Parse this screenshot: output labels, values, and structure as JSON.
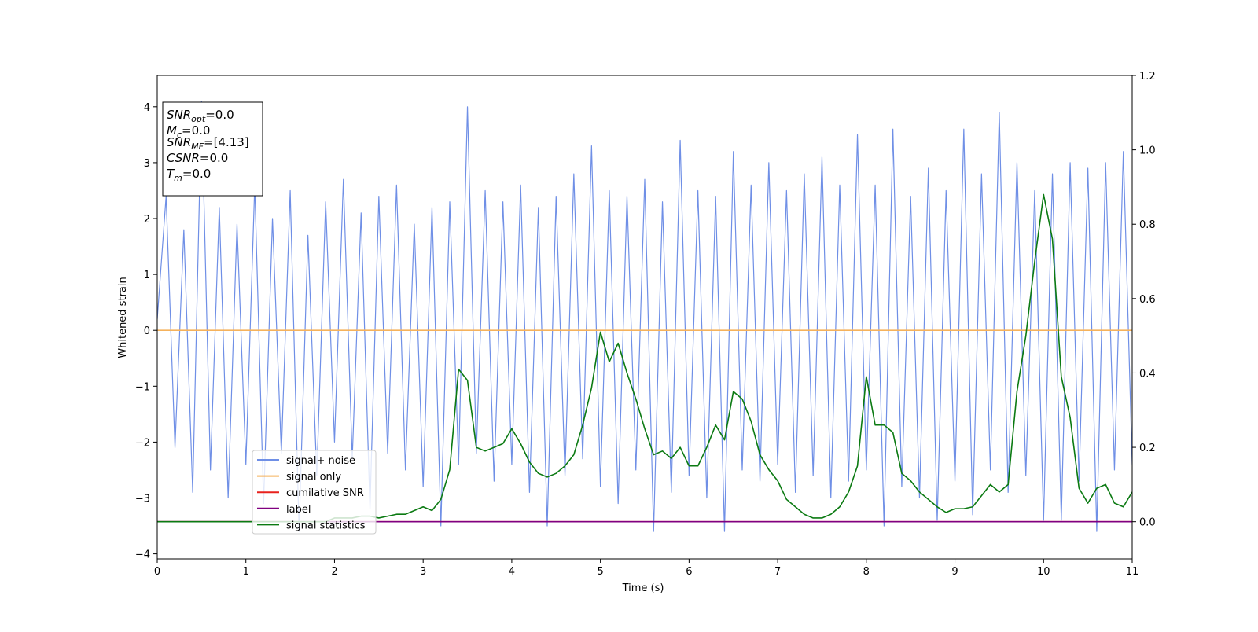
{
  "chart_data": {
    "type": "line",
    "x_label": "Time (s)",
    "y_label": "Whitened strain",
    "xlim": [
      0,
      11
    ],
    "ylim": [
      -4.09,
      4.56
    ],
    "y2lim": [
      -0.1,
      1.2
    ],
    "xticks": [
      0,
      1,
      2,
      3,
      4,
      5,
      6,
      7,
      8,
      9,
      10,
      11
    ],
    "yticks": [
      {
        "value": -4,
        "label": "−4"
      },
      {
        "value": -3,
        "label": "−3"
      },
      {
        "value": -2,
        "label": "−2"
      },
      {
        "value": -1,
        "label": "−1"
      },
      0,
      1,
      2,
      3,
      4
    ],
    "y2ticks": [
      {
        "value": 0,
        "label": "0.0"
      },
      0.2,
      0.4,
      0.6,
      0.8,
      {
        "value": 1,
        "label": "1.0"
      },
      1.2
    ],
    "legend_position": "lower left",
    "annotation": [
      {
        "main": "SNR",
        "sub": "opt",
        "rest": "=0.0"
      },
      {
        "main": "M",
        "sub": "c",
        "rest": "=0.0"
      },
      {
        "main": "SNR",
        "sub": "MF",
        "rest": "=[4.13]"
      },
      {
        "main": "CSNR",
        "rest": "=0.0"
      },
      {
        "main": "T",
        "sub": "m",
        "rest": "=0.0"
      }
    ],
    "x": [
      0,
      0.1,
      0.2,
      0.3,
      0.4,
      0.5,
      0.6,
      0.7,
      0.8,
      0.9,
      1,
      1.1,
      1.2,
      1.3,
      1.4,
      1.5,
      1.6,
      1.7,
      1.8,
      1.9,
      2,
      2.1,
      2.2,
      2.3,
      2.4,
      2.5,
      2.6,
      2.7,
      2.8,
      2.9,
      3,
      3.1,
      3.2,
      3.3,
      3.4,
      3.5,
      3.6,
      3.7,
      3.8,
      3.9,
      4,
      4.1,
      4.2,
      4.3,
      4.4,
      4.5,
      4.6,
      4.7,
      4.8,
      4.9,
      5,
      5.1,
      5.2,
      5.3,
      5.4,
      5.5,
      5.6,
      5.7,
      5.8,
      5.9,
      6,
      6.1,
      6.2,
      6.3,
      6.4,
      6.5,
      6.6,
      6.7,
      6.8,
      6.9,
      7,
      7.1,
      7.2,
      7.3,
      7.4,
      7.5,
      7.6,
      7.7,
      7.8,
      7.9,
      8,
      8.1,
      8.2,
      8.3,
      8.4,
      8.5,
      8.6,
      8.7,
      8.8,
      8.9,
      9,
      9.1,
      9.2,
      9.3,
      9.4,
      9.5,
      9.6,
      9.7,
      9.8,
      9.9,
      10,
      10.1,
      10.2,
      10.3,
      10.4,
      10.5,
      10.6,
      10.7,
      10.8,
      10.9,
      11
    ],
    "series": [
      {
        "name": "signal+ noise",
        "color": "#6f8fe6",
        "axis": "y",
        "values": [
          0.2,
          2.4,
          -2.1,
          1.8,
          -2.9,
          4.1,
          -2.5,
          2.2,
          -3.0,
          1.9,
          -2.4,
          2.6,
          -3.1,
          2.0,
          -2.2,
          2.5,
          -3.6,
          1.7,
          -2.6,
          2.3,
          -2.0,
          2.7,
          -2.3,
          2.1,
          -3.2,
          2.4,
          -2.2,
          2.6,
          -2.5,
          1.9,
          -2.8,
          2.2,
          -3.5,
          2.3,
          -2.4,
          4.0,
          -2.2,
          2.5,
          -2.7,
          2.3,
          -2.4,
          2.6,
          -2.9,
          2.2,
          -3.5,
          2.4,
          -2.6,
          2.8,
          -2.3,
          3.3,
          -2.8,
          2.5,
          -3.1,
          2.4,
          -2.5,
          2.7,
          -3.6,
          2.3,
          -2.9,
          3.4,
          -2.6,
          2.5,
          -3.0,
          2.4,
          -3.6,
          3.2,
          -2.5,
          2.6,
          -2.7,
          3.0,
          -2.4,
          2.5,
          -2.9,
          2.8,
          -2.6,
          3.1,
          -3.0,
          2.6,
          -2.7,
          3.5,
          -2.5,
          2.6,
          -3.5,
          3.6,
          -2.8,
          2.4,
          -3.0,
          2.9,
          -3.4,
          2.5,
          -2.7,
          3.6,
          -3.3,
          2.8,
          -2.5,
          3.9,
          -2.9,
          3.0,
          -2.6,
          2.5,
          -3.4,
          2.8,
          -3.4,
          3.0,
          -2.7,
          2.9,
          -3.6,
          3.0,
          -2.5,
          3.2,
          -2.4
        ]
      },
      {
        "name": "signal only",
        "color": "#f5b25c",
        "axis": "y",
        "values": [
          0,
          0,
          0,
          0,
          0,
          0,
          0,
          0,
          0,
          0,
          0,
          0,
          0,
          0,
          0,
          0,
          0,
          0,
          0,
          0,
          0,
          0,
          0,
          0,
          0,
          0,
          0,
          0,
          0,
          0,
          0,
          0,
          0,
          0,
          0,
          0,
          0,
          0,
          0,
          0,
          0,
          0,
          0,
          0,
          0,
          0,
          0,
          0,
          0,
          0,
          0,
          0,
          0,
          0,
          0,
          0,
          0,
          0,
          0,
          0,
          0,
          0,
          0,
          0,
          0,
          0,
          0,
          0,
          0,
          0,
          0,
          0,
          0,
          0,
          0,
          0,
          0,
          0,
          0,
          0,
          0,
          0,
          0,
          0,
          0,
          0,
          0,
          0,
          0,
          0,
          0,
          0,
          0,
          0,
          0,
          0,
          0,
          0,
          0,
          0,
          0,
          0,
          0,
          0,
          0,
          0,
          0,
          0,
          0,
          0,
          0
        ]
      },
      {
        "name": "cumilative SNR",
        "color": "#e8211d",
        "axis": "y2",
        "values": [
          0,
          0,
          0,
          0,
          0,
          0,
          0,
          0,
          0,
          0,
          0,
          0,
          0,
          0,
          0,
          0,
          0,
          0,
          0,
          0,
          0,
          0,
          0,
          0,
          0,
          0,
          0,
          0,
          0,
          0,
          0,
          0,
          0,
          0,
          0,
          0,
          0,
          0,
          0,
          0,
          0,
          0,
          0,
          0,
          0,
          0,
          0,
          0,
          0,
          0,
          0,
          0,
          0,
          0,
          0,
          0,
          0,
          0,
          0,
          0,
          0,
          0,
          0,
          0,
          0,
          0,
          0,
          0,
          0,
          0,
          0,
          0,
          0,
          0,
          0,
          0,
          0,
          0,
          0,
          0,
          0,
          0,
          0,
          0,
          0,
          0,
          0,
          0,
          0,
          0,
          0,
          0,
          0,
          0,
          0,
          0,
          0,
          0,
          0,
          0,
          0,
          0,
          0,
          0,
          0,
          0,
          0,
          0,
          0,
          0,
          0
        ]
      },
      {
        "name": "label",
        "color": "#800080",
        "axis": "y2",
        "values": [
          0,
          0,
          0,
          0,
          0,
          0,
          0,
          0,
          0,
          0,
          0,
          0,
          0,
          0,
          0,
          0,
          0,
          0,
          0,
          0,
          0,
          0,
          0,
          0,
          0,
          0,
          0,
          0,
          0,
          0,
          0,
          0,
          0,
          0,
          0,
          0,
          0,
          0,
          0,
          0,
          0,
          0,
          0,
          0,
          0,
          0,
          0,
          0,
          0,
          0,
          0,
          0,
          0,
          0,
          0,
          0,
          0,
          0,
          0,
          0,
          0,
          0,
          0,
          0,
          0,
          0,
          0,
          0,
          0,
          0,
          0,
          0,
          0,
          0,
          0,
          0,
          0,
          0,
          0,
          0,
          0,
          0,
          0,
          0,
          0,
          0,
          0,
          0,
          0,
          0,
          0,
          0,
          0,
          0,
          0,
          0,
          0,
          0,
          0,
          0,
          0,
          0,
          0,
          0,
          0,
          0,
          0,
          0,
          0,
          0,
          0
        ]
      },
      {
        "name": "signal statistics",
        "color": "#0b7a12",
        "axis": "y2",
        "values": [
          0,
          0,
          0,
          0,
          0,
          0,
          0,
          0,
          0,
          0,
          0,
          0,
          0,
          0,
          0,
          0,
          0,
          0,
          0,
          0,
          0.01,
          0.01,
          0.01,
          0.015,
          0.015,
          0.01,
          0.015,
          0.02,
          0.02,
          0.03,
          0.04,
          0.03,
          0.06,
          0.14,
          0.41,
          0.38,
          0.2,
          0.19,
          0.2,
          0.21,
          0.25,
          0.21,
          0.16,
          0.13,
          0.12,
          0.13,
          0.15,
          0.18,
          0.26,
          0.36,
          0.51,
          0.43,
          0.48,
          0.4,
          0.33,
          0.25,
          0.18,
          0.19,
          0.17,
          0.2,
          0.15,
          0.15,
          0.2,
          0.26,
          0.22,
          0.35,
          0.33,
          0.27,
          0.18,
          0.14,
          0.11,
          0.06,
          0.04,
          0.02,
          0.01,
          0.01,
          0.02,
          0.04,
          0.08,
          0.15,
          0.39,
          0.26,
          0.26,
          0.24,
          0.13,
          0.11,
          0.08,
          0.06,
          0.04,
          0.025,
          0.035,
          0.035,
          0.04,
          0.07,
          0.1,
          0.08,
          0.1,
          0.35,
          0.5,
          0.7,
          0.88,
          0.76,
          0.39,
          0.28,
          0.09,
          0.05,
          0.09,
          0.1,
          0.05,
          0.04,
          0.08
        ]
      }
    ]
  }
}
